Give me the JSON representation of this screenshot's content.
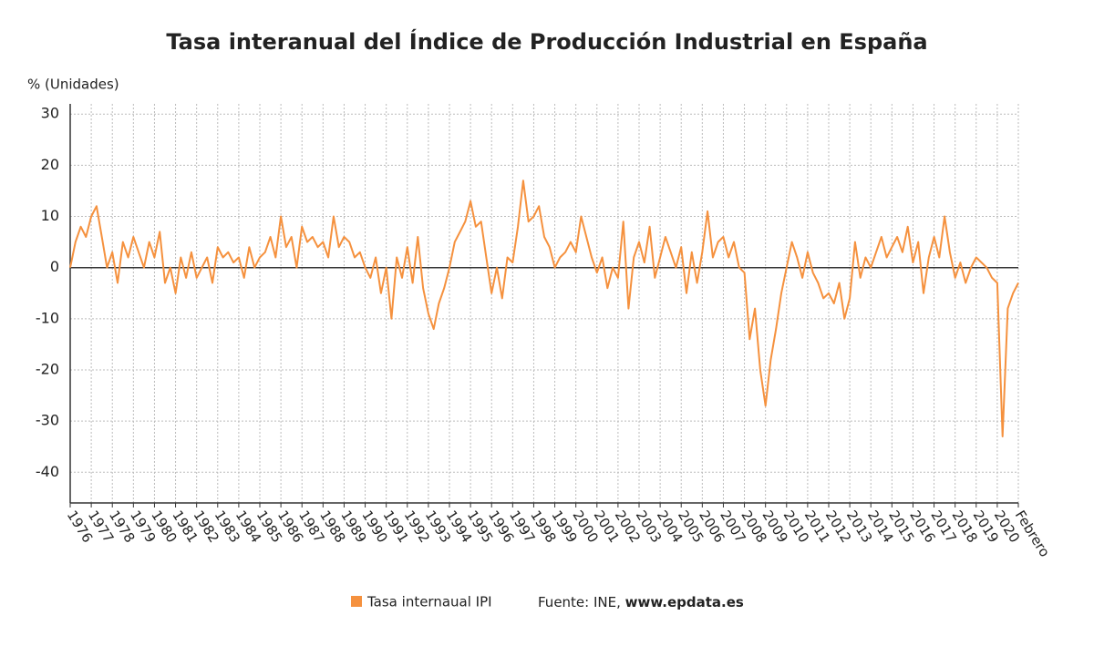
{
  "chart_data": {
    "type": "line",
    "title": "Tasa interanual del Índice de Producción Industrial en España",
    "y_label": "% (Unidades)",
    "source_prefix": "Fuente: INE,",
    "source_site": "www.epdata.es",
    "categories": [
      "1976",
      null,
      null,
      null,
      "1977",
      null,
      null,
      null,
      "1978",
      null,
      null,
      null,
      "1979",
      null,
      null,
      null,
      "1980",
      null,
      null,
      null,
      "1981",
      null,
      null,
      null,
      "1982",
      null,
      null,
      null,
      "1983",
      null,
      null,
      null,
      "1984",
      null,
      null,
      null,
      "1985",
      null,
      null,
      null,
      "1986",
      null,
      null,
      null,
      "1987",
      null,
      null,
      null,
      "1988",
      null,
      null,
      null,
      "1989",
      null,
      null,
      null,
      "1990",
      null,
      null,
      null,
      "1991",
      null,
      null,
      null,
      "1992",
      null,
      null,
      null,
      "1993",
      null,
      null,
      null,
      "1994",
      null,
      null,
      null,
      "1995",
      null,
      null,
      null,
      "1996",
      null,
      null,
      null,
      "1997",
      null,
      null,
      null,
      "1998",
      null,
      null,
      null,
      "1999",
      null,
      null,
      null,
      "2000",
      null,
      null,
      null,
      "2001",
      null,
      null,
      null,
      "2002",
      null,
      null,
      null,
      "2003",
      null,
      null,
      null,
      "2004",
      null,
      null,
      null,
      "2005",
      null,
      null,
      null,
      "2006",
      null,
      null,
      null,
      "2007",
      null,
      null,
      null,
      "2008",
      null,
      null,
      null,
      "2009",
      null,
      null,
      null,
      "2010",
      null,
      null,
      null,
      "2011",
      null,
      null,
      null,
      "2012",
      null,
      null,
      null,
      "2013",
      null,
      null,
      null,
      "2014",
      null,
      null,
      null,
      "2015",
      null,
      null,
      null,
      "2016",
      null,
      null,
      null,
      "2017",
      null,
      null,
      null,
      "2018",
      null,
      null,
      null,
      "2019",
      null,
      null,
      null,
      "2020",
      null,
      null,
      null,
      "Febrero"
    ],
    "series": [
      {
        "name": "Tasa internaual IPI",
        "color": "#f5913e",
        "values": [
          0,
          5,
          8,
          6,
          10,
          12,
          6,
          0,
          3,
          -3,
          5,
          2,
          6,
          3,
          0,
          5,
          2,
          7,
          -3,
          0,
          -5,
          2,
          -2,
          3,
          -2,
          0,
          2,
          -3,
          4,
          2,
          3,
          1,
          2,
          -2,
          4,
          0,
          2,
          3,
          6,
          2,
          10,
          4,
          6,
          0,
          8,
          5,
          6,
          4,
          5,
          2,
          10,
          4,
          6,
          5,
          2,
          3,
          0,
          -2,
          2,
          -5,
          0,
          -10,
          2,
          -2,
          4,
          -3,
          6,
          -4,
          -9,
          -12,
          -7,
          -4,
          0,
          5,
          7,
          9,
          13,
          8,
          9,
          2,
          -5,
          0,
          -6,
          2,
          1,
          8,
          17,
          9,
          10,
          12,
          6,
          4,
          0,
          2,
          3,
          5,
          3,
          10,
          6,
          2,
          -1,
          2,
          -4,
          0,
          -2,
          9,
          -8,
          2,
          5,
          1,
          8,
          -2,
          2,
          6,
          3,
          0,
          4,
          -5,
          3,
          -3,
          3,
          11,
          2,
          5,
          6,
          2,
          5,
          0,
          -1,
          -14,
          -8,
          -20,
          -27,
          -18,
          -12,
          -5,
          0,
          5,
          2,
          -2,
          3,
          -1,
          -3,
          -6,
          -5,
          -7,
          -3,
          -10,
          -6,
          5,
          -2,
          2,
          0,
          3,
          6,
          2,
          4,
          6,
          3,
          8,
          1,
          5,
          -5,
          2,
          6,
          2,
          10,
          3,
          -2,
          1,
          -3,
          0,
          2,
          1,
          0,
          -2,
          -3,
          -33,
          -8,
          -5,
          -3
        ]
      }
    ],
    "ylim": [
      -46,
      32
    ],
    "yticks": [
      -40,
      -30,
      -20,
      -10,
      0,
      10,
      20,
      30
    ],
    "grid": true,
    "legend": "bottom"
  }
}
